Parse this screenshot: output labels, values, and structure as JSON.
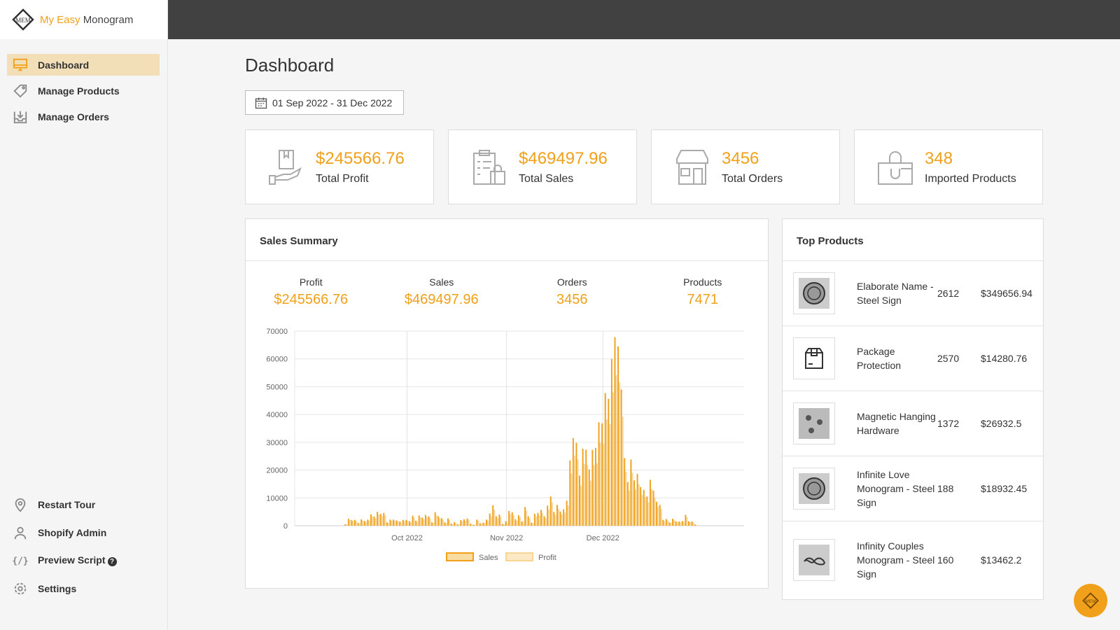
{
  "brand": {
    "part1": "My Easy",
    "part2": "Monogram"
  },
  "sidebar": {
    "items": [
      {
        "label": "Dashboard",
        "icon": "monitor-icon",
        "active": true
      },
      {
        "label": "Manage Products",
        "icon": "tag-icon"
      },
      {
        "label": "Manage Orders",
        "icon": "inbox-download-icon"
      }
    ],
    "bottom": [
      {
        "label": "Restart Tour",
        "icon": "map-pin-icon"
      },
      {
        "label": "Shopify Admin",
        "icon": "user-icon"
      },
      {
        "label": "Preview Script",
        "icon": "code-icon",
        "help": "?"
      },
      {
        "label": "Settings",
        "icon": "gear-icon"
      }
    ]
  },
  "page": {
    "title": "Dashboard",
    "date_range": "01 Sep 2022 - 31 Dec 2022"
  },
  "stats": [
    {
      "value": "$245566.76",
      "label": "Total Profit",
      "icon": "hand-book-icon"
    },
    {
      "value": "$469497.96",
      "label": "Total Sales",
      "icon": "clipboard-bag-icon"
    },
    {
      "value": "3456",
      "label": "Total Orders",
      "icon": "store-icon"
    },
    {
      "value": "348",
      "label": "Imported Products",
      "icon": "shopping-bag-icon"
    }
  ],
  "sales_summary": {
    "title": "Sales Summary",
    "metrics": [
      {
        "label": "Profit",
        "value": "$245566.76"
      },
      {
        "label": "Sales",
        "value": "$469497.96"
      },
      {
        "label": "Orders",
        "value": "3456"
      },
      {
        "label": "Products",
        "value": "7471"
      }
    ]
  },
  "colors": {
    "accent": "#f0a01a",
    "sales": "#f0a01a",
    "profit": "#f7d596",
    "topbar": "#414141"
  },
  "chart_data": {
    "type": "bar",
    "xlim": [
      "2022-08-27",
      "2023-01-14"
    ],
    "ylim": [
      0,
      70000
    ],
    "yticks": [
      "0",
      "10000",
      "20000",
      "30000",
      "40000",
      "50000",
      "60000",
      "70000"
    ],
    "xticks": [
      {
        "date": "2022-10-01",
        "label": "Oct 2022"
      },
      {
        "date": "2022-11-01",
        "label": "Nov 2022"
      },
      {
        "date": "2022-12-01",
        "label": "Dec 2022"
      }
    ],
    "grid": true,
    "legend": "bottom",
    "start_date": "2022-09-12",
    "series": [
      {
        "name": "Sales",
        "values": [
          500,
          2500,
          2000,
          2100,
          1000,
          2300,
          1700,
          2200,
          4100,
          3300,
          5000,
          4300,
          4600,
          1200,
          2200,
          2200,
          1900,
          1500,
          2100,
          2100,
          1600,
          3600,
          1800,
          3700,
          2900,
          3900,
          3400,
          1200,
          4800,
          3400,
          2700,
          1200,
          2600,
          800,
          1300,
          500,
          2000,
          2300,
          2600,
          700,
          300,
          2200,
          900,
          1100,
          2200,
          4400,
          7300,
          3400,
          4000,
          600,
          1600,
          5300,
          4800,
          2300,
          3800,
          1600,
          6700,
          3400,
          1100,
          4300,
          4600,
          5700,
          3400,
          7200,
          10500,
          4900,
          7500,
          5100,
          5900,
          9000,
          23500,
          31500,
          29800,
          18000,
          27700,
          27300,
          20200,
          27300,
          28000,
          37200,
          36800,
          47700,
          45600,
          60000,
          67800,
          64500,
          49000,
          24300,
          15700,
          23800,
          16300,
          18600,
          13900,
          12900,
          10500,
          16500,
          12600,
          8600,
          7500,
          2100,
          2400,
          1200,
          2500,
          1600,
          1500,
          1700,
          3900,
          1600,
          1500,
          400
        ]
      },
      {
        "name": "Profit",
        "values": [
          400,
          2000,
          1600,
          1700,
          800,
          1800,
          1400,
          1800,
          3300,
          2600,
          4000,
          3400,
          3700,
          1000,
          1800,
          1800,
          1500,
          1200,
          1700,
          1700,
          1300,
          2900,
          1400,
          3000,
          2300,
          3100,
          2700,
          1000,
          3800,
          2700,
          2200,
          1000,
          2100,
          600,
          1000,
          400,
          1600,
          1800,
          2100,
          600,
          200,
          1800,
          700,
          900,
          1800,
          3500,
          5800,
          2700,
          3200,
          500,
          1300,
          4200,
          3800,
          1800,
          3000,
          1300,
          5400,
          2700,
          900,
          3400,
          3700,
          4600,
          2700,
          5800,
          8400,
          3900,
          6000,
          4100,
          4700,
          7200,
          18800,
          25200,
          23800,
          14400,
          22200,
          21800,
          16200,
          21800,
          22400,
          29800,
          29400,
          38200,
          36500,
          48000,
          54200,
          51600,
          39200,
          19400,
          12600,
          19000,
          13000,
          14900,
          11100,
          10300,
          8400,
          13200,
          10100,
          6900,
          6000,
          1700,
          1900,
          1000,
          2000,
          1300,
          1200,
          1400,
          3100,
          1300,
          1200,
          300
        ]
      }
    ]
  },
  "top_products": {
    "title": "Top Products",
    "items": [
      {
        "name": "Elaborate Name - Steel Sign",
        "qty": "2612",
        "revenue": "$349656.94"
      },
      {
        "name": "Package Protection",
        "qty": "2570",
        "revenue": "$14280.76"
      },
      {
        "name": "Magnetic Hanging Hardware",
        "qty": "1372",
        "revenue": "$26932.5"
      },
      {
        "name": "Infinite Love Monogram - Steel Sign",
        "qty": "188",
        "revenue": "$18932.45"
      },
      {
        "name": "Infinity Couples Monogram - Steel Sign",
        "qty": "160",
        "revenue": "$13462.2"
      }
    ]
  }
}
